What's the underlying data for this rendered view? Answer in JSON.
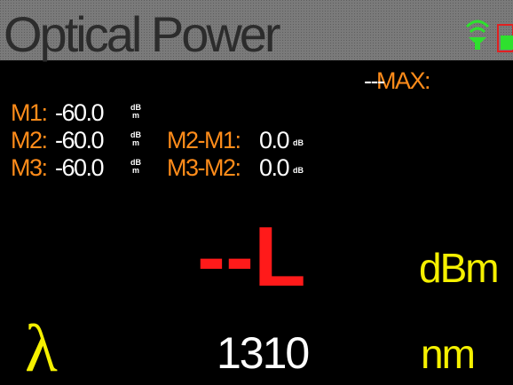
{
  "header": {
    "title": "Optical Power"
  },
  "max": {
    "label": "MAX:",
    "value": "---"
  },
  "markers": [
    {
      "label": "M1:",
      "value": "-60.0",
      "unit_top": "dB",
      "unit_bottom": "m"
    },
    {
      "label": "M2:",
      "value": "-60.0",
      "unit_top": "dB",
      "unit_bottom": "m",
      "diff_label": "M2-M1:",
      "diff_value": "0.0",
      "diff_unit": "dB"
    },
    {
      "label": "M3:",
      "value": "-60.0",
      "unit_top": "dB",
      "unit_bottom": "m",
      "diff_label": "M3-M2:",
      "diff_value": "0.0",
      "diff_unit": "dB"
    }
  ],
  "reading": {
    "value": "--L",
    "unit": "dBm"
  },
  "wavelength": {
    "symbol": "λ",
    "value": "1310",
    "unit": "nm"
  }
}
